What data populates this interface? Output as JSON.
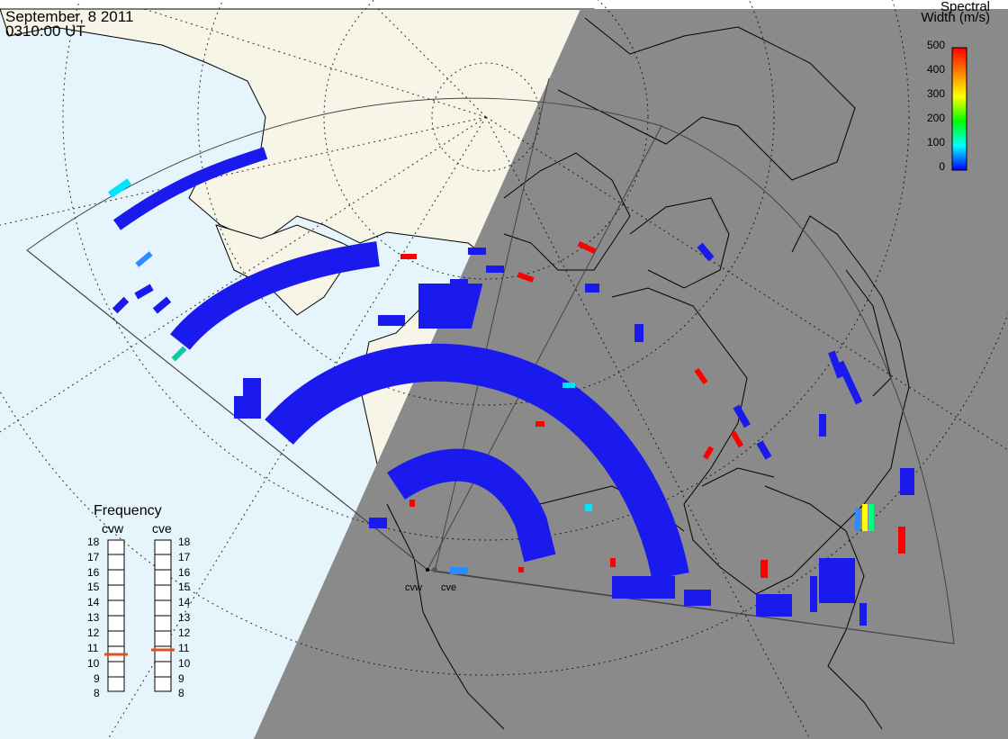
{
  "header": {
    "date": "September, 8 2011",
    "time": "0310:00 UT"
  },
  "colorbar": {
    "title_line1": "Spectral",
    "title_line2": "Width (m/s)",
    "ticks": [
      "500",
      "400",
      "300",
      "200",
      "100",
      "0"
    ],
    "colors": [
      "#ff0000",
      "#ff8000",
      "#ffff00",
      "#00ff00",
      "#00ffff",
      "#0000ff"
    ]
  },
  "frequency_panel": {
    "title": "Frequency",
    "radar_names": [
      "cvw",
      "cve"
    ],
    "ticks": [
      "18",
      "17",
      "16",
      "15",
      "14",
      "13",
      "12",
      "11",
      "10",
      "9",
      "8"
    ],
    "marker_color": "#e05020"
  },
  "radar_labels": [
    "cvw",
    "cve"
  ],
  "colors": {
    "ocean": "#e6f4fb",
    "land": "#f7f5e8",
    "night": "#8a8a8a",
    "echo": "#1a1aee"
  },
  "chart_data": {
    "type": "heatmap",
    "variable": "Spectral Width (m/s)",
    "zlim": [
      0,
      500
    ],
    "radars": [
      {
        "name": "cvw",
        "frequency_mhz": 10.5
      },
      {
        "name": "cve",
        "frequency_mhz": 10.8
      }
    ],
    "frequency_axis": {
      "min": 8,
      "max": 18
    },
    "dominant_value_ms": 30,
    "notable_high_width_ms": 480,
    "grid": true,
    "legend_placement": "top-right"
  }
}
